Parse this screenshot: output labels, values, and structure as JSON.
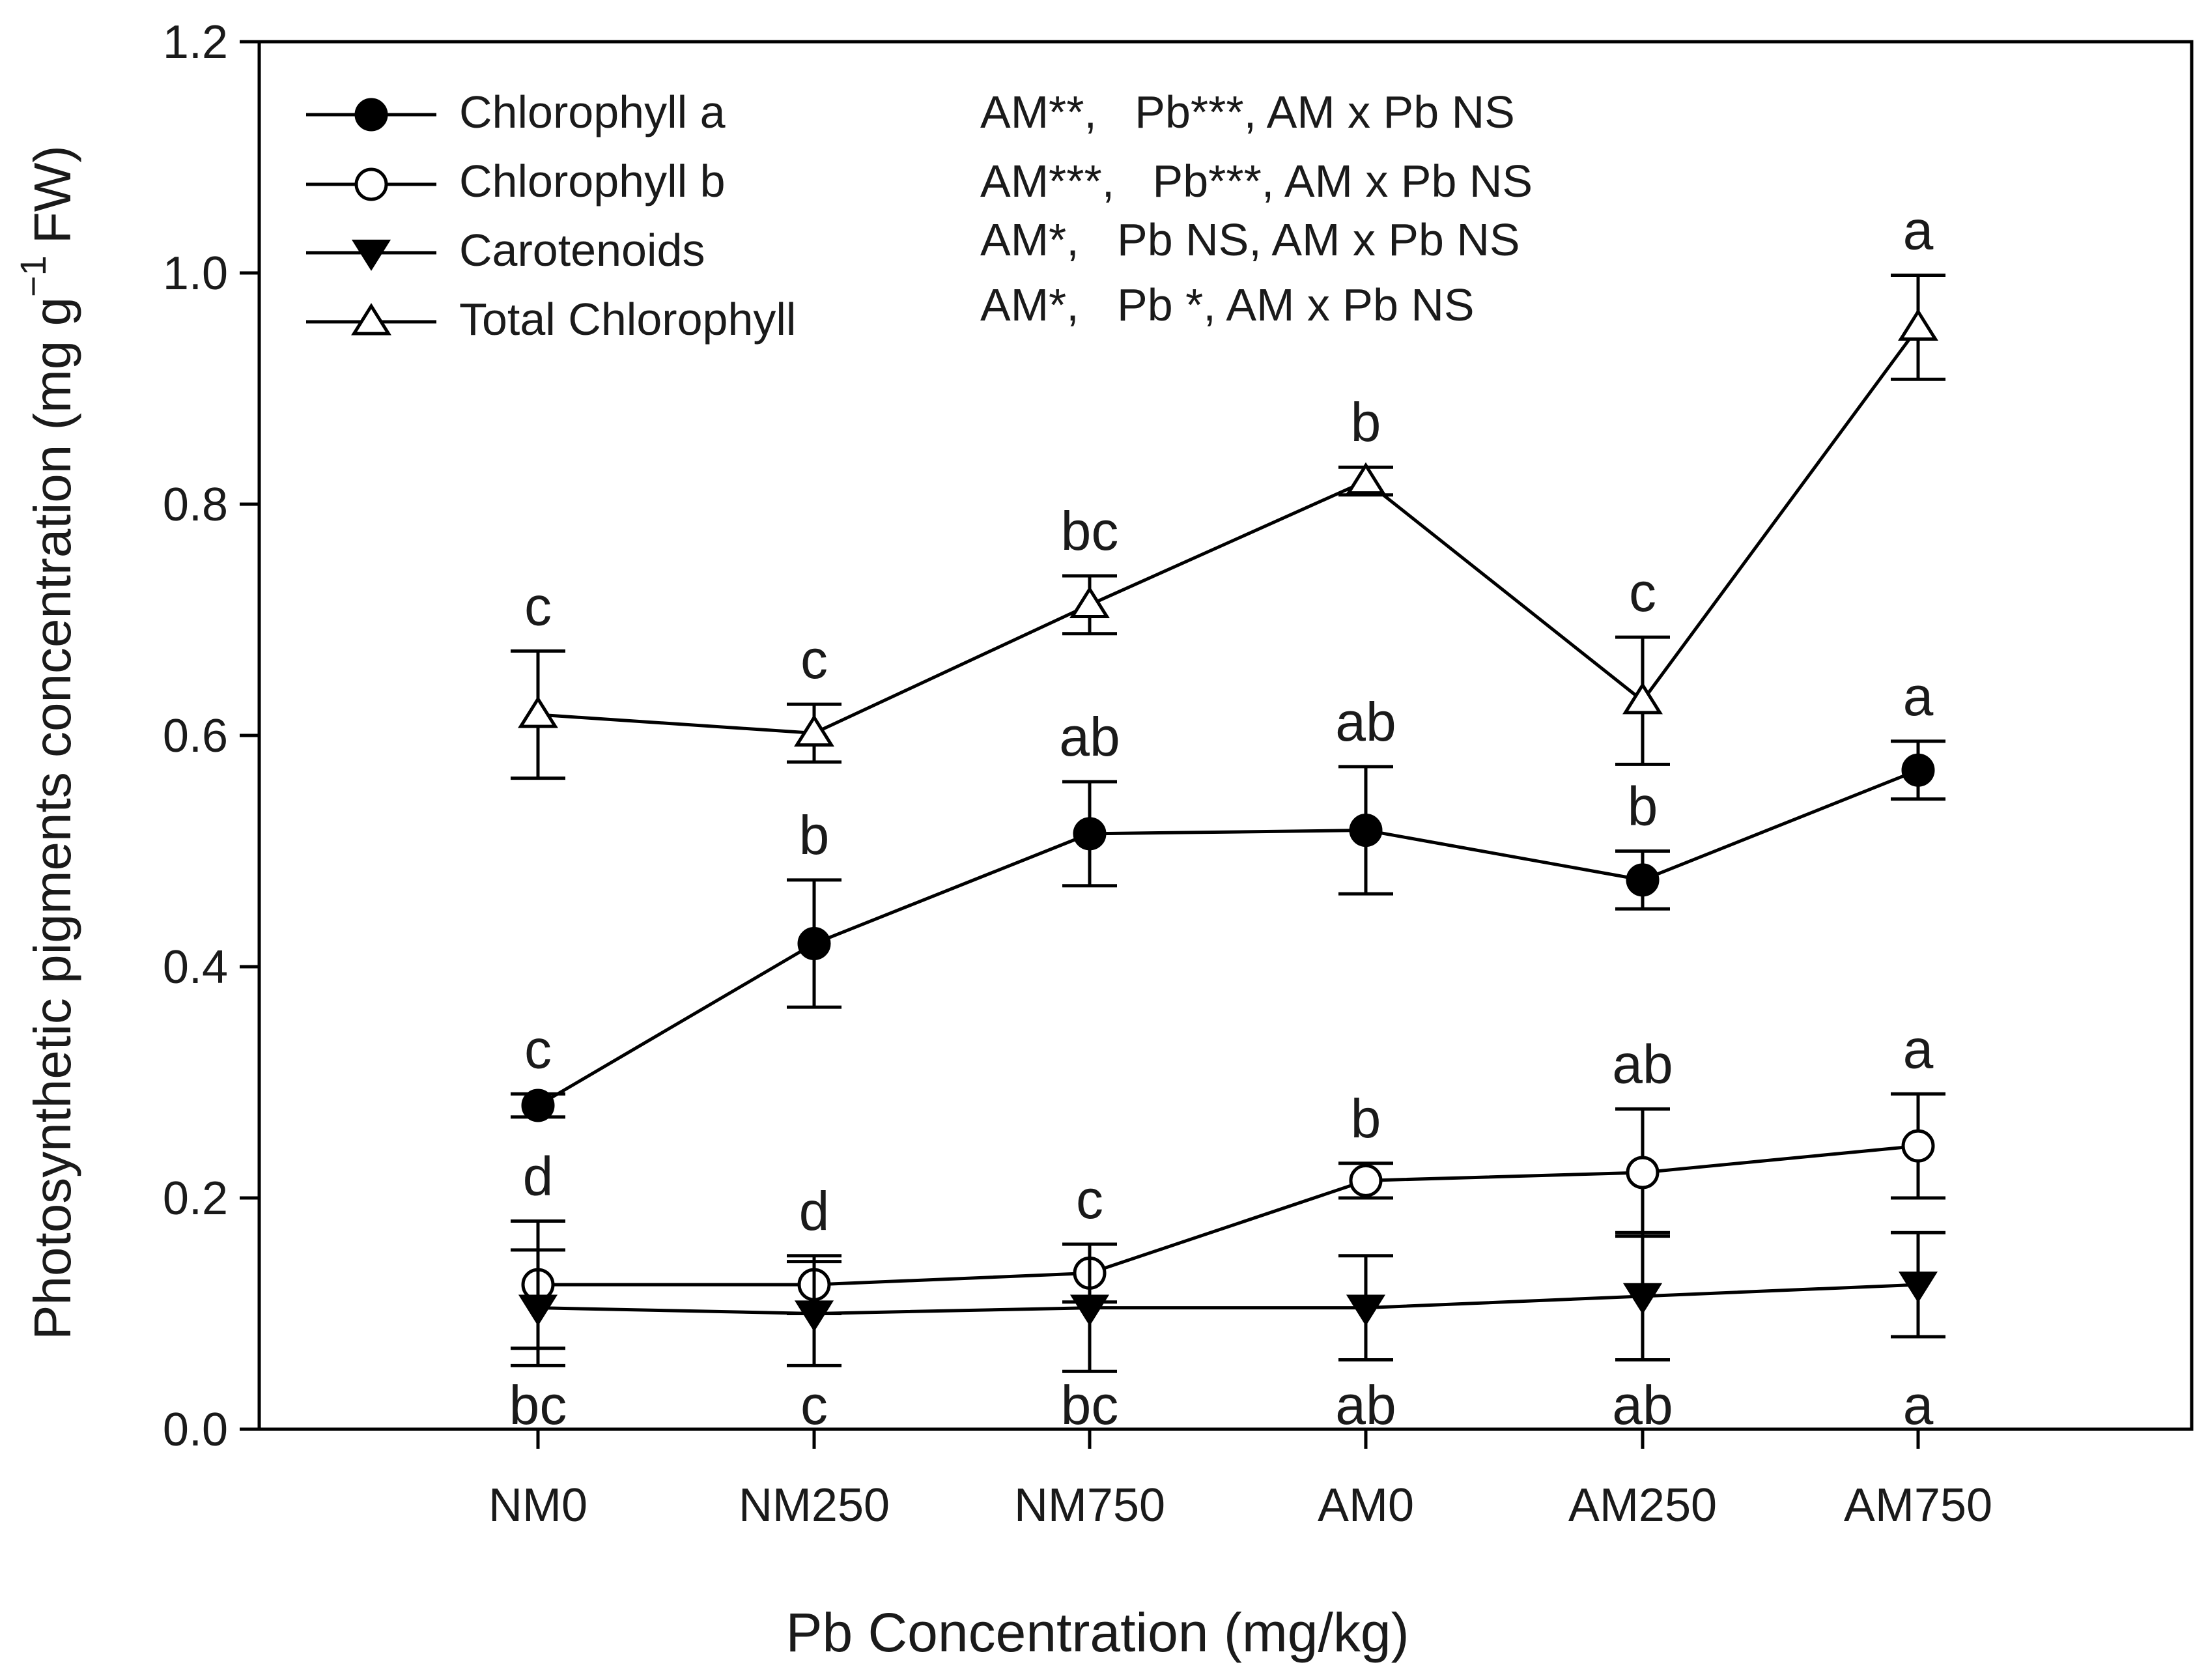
{
  "chart_data": {
    "type": "line",
    "title": "",
    "xlabel": "Pb Concentration (mg/kg)",
    "ylabel": {
      "main": "Photosynthetic pigments concentration (mg g",
      "sup": "−1",
      "unit": "FW)"
    },
    "ylim": [
      0.0,
      1.2
    ],
    "yticks": [
      "0.0",
      "0.2",
      "0.4",
      "0.6",
      "0.8",
      "1.0",
      "1.2"
    ],
    "categories": [
      "NM0",
      "NM250",
      "NM750",
      "AM0",
      "AM250",
      "AM750"
    ],
    "grid": false,
    "legend_position": "top-left",
    "series": [
      {
        "name": "Chlorophyll a",
        "marker": "filled-circle",
        "stats": "AM**,   Pb***, AM x Pb NS",
        "values": [
          0.28,
          0.42,
          0.515,
          0.518,
          0.475,
          0.57
        ],
        "errors": [
          0.01,
          0.055,
          0.045,
          0.055,
          0.025,
          0.025
        ],
        "letters": [
          "c",
          "b",
          "ab",
          "ab",
          "b",
          "a"
        ],
        "letter_side": "above"
      },
      {
        "name": "Chlorophyll b",
        "marker": "open-circle",
        "stats": "AM***,   Pb***, AM x Pb NS",
        "values": [
          0.125,
          0.125,
          0.135,
          0.215,
          0.222,
          0.245
        ],
        "errors": [
          0.055,
          0.025,
          0.025,
          0.015,
          0.055,
          0.045
        ],
        "letters": [
          "d",
          "d",
          "c",
          "b",
          "ab",
          "a"
        ],
        "letter_side": "above"
      },
      {
        "name": "Carotenoids",
        "marker": "filled-triangle-down",
        "stats": "AM*,   Pb NS, AM x Pb NS",
        "values": [
          0.105,
          0.1,
          0.105,
          0.105,
          0.115,
          0.125
        ],
        "errors": [
          0.05,
          0.045,
          0.055,
          0.045,
          0.055,
          0.045
        ],
        "letters": [
          "bc",
          "c",
          "bc",
          "ab",
          "ab",
          "a"
        ],
        "letter_side": "below"
      },
      {
        "name": "Total Chlorophyll",
        "marker": "open-triangle-up",
        "stats": "AM*,   Pb *, AM x Pb NS",
        "values": [
          0.618,
          0.602,
          0.713,
          0.82,
          0.63,
          0.953
        ],
        "errors": [
          0.055,
          0.025,
          0.025,
          0.012,
          0.055,
          0.045
        ],
        "letters": [
          "c",
          "c",
          "bc",
          "b",
          "c",
          "a"
        ],
        "letter_side": "above"
      }
    ]
  }
}
